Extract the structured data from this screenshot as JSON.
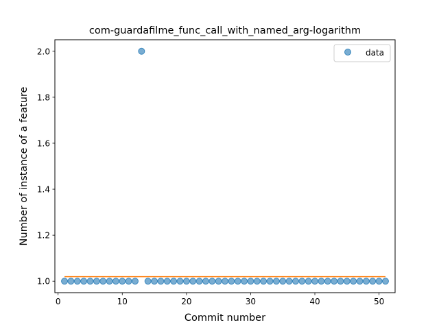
{
  "chart_data": {
    "type": "scatter",
    "title": "com-guardafilme_func_call_with_named_arg-logarithm",
    "xlabel": "Commit number",
    "ylabel": "Number of instance of a feature",
    "xlim": [
      -0.5,
      52.5
    ],
    "ylim": [
      0.95,
      2.05
    ],
    "xticks": [
      0,
      10,
      20,
      30,
      40,
      50
    ],
    "yticks": [
      1.0,
      1.2,
      1.4,
      1.6,
      1.8,
      2.0
    ],
    "xtick_labels": [
      "0",
      "10",
      "20",
      "30",
      "40",
      "50"
    ],
    "ytick_labels": [
      "1.0",
      "1.2",
      "1.4",
      "1.6",
      "1.8",
      "2.0"
    ],
    "grid": false,
    "legend_position": "top-right",
    "series": [
      {
        "name": "data",
        "kind": "scatter",
        "color": "#1f77b4",
        "x": [
          1,
          2,
          3,
          4,
          5,
          6,
          7,
          8,
          9,
          10,
          11,
          12,
          13,
          14,
          15,
          16,
          17,
          18,
          19,
          20,
          21,
          22,
          23,
          24,
          25,
          26,
          27,
          28,
          29,
          30,
          31,
          32,
          33,
          34,
          35,
          36,
          37,
          38,
          39,
          40,
          41,
          42,
          43,
          44,
          45,
          46,
          47,
          48,
          49,
          50,
          51
        ],
        "y": [
          1,
          1,
          1,
          1,
          1,
          1,
          1,
          1,
          1,
          1,
          1,
          1,
          2,
          1,
          1,
          1,
          1,
          1,
          1,
          1,
          1,
          1,
          1,
          1,
          1,
          1,
          1,
          1,
          1,
          1,
          1,
          1,
          1,
          1,
          1,
          1,
          1,
          1,
          1,
          1,
          1,
          1,
          1,
          1,
          1,
          1,
          1,
          1,
          1,
          1,
          1
        ]
      },
      {
        "kind": "line",
        "color": "#ff7f0e",
        "x": [
          1,
          51
        ],
        "y": [
          1.0196,
          1.0196
        ]
      }
    ]
  }
}
